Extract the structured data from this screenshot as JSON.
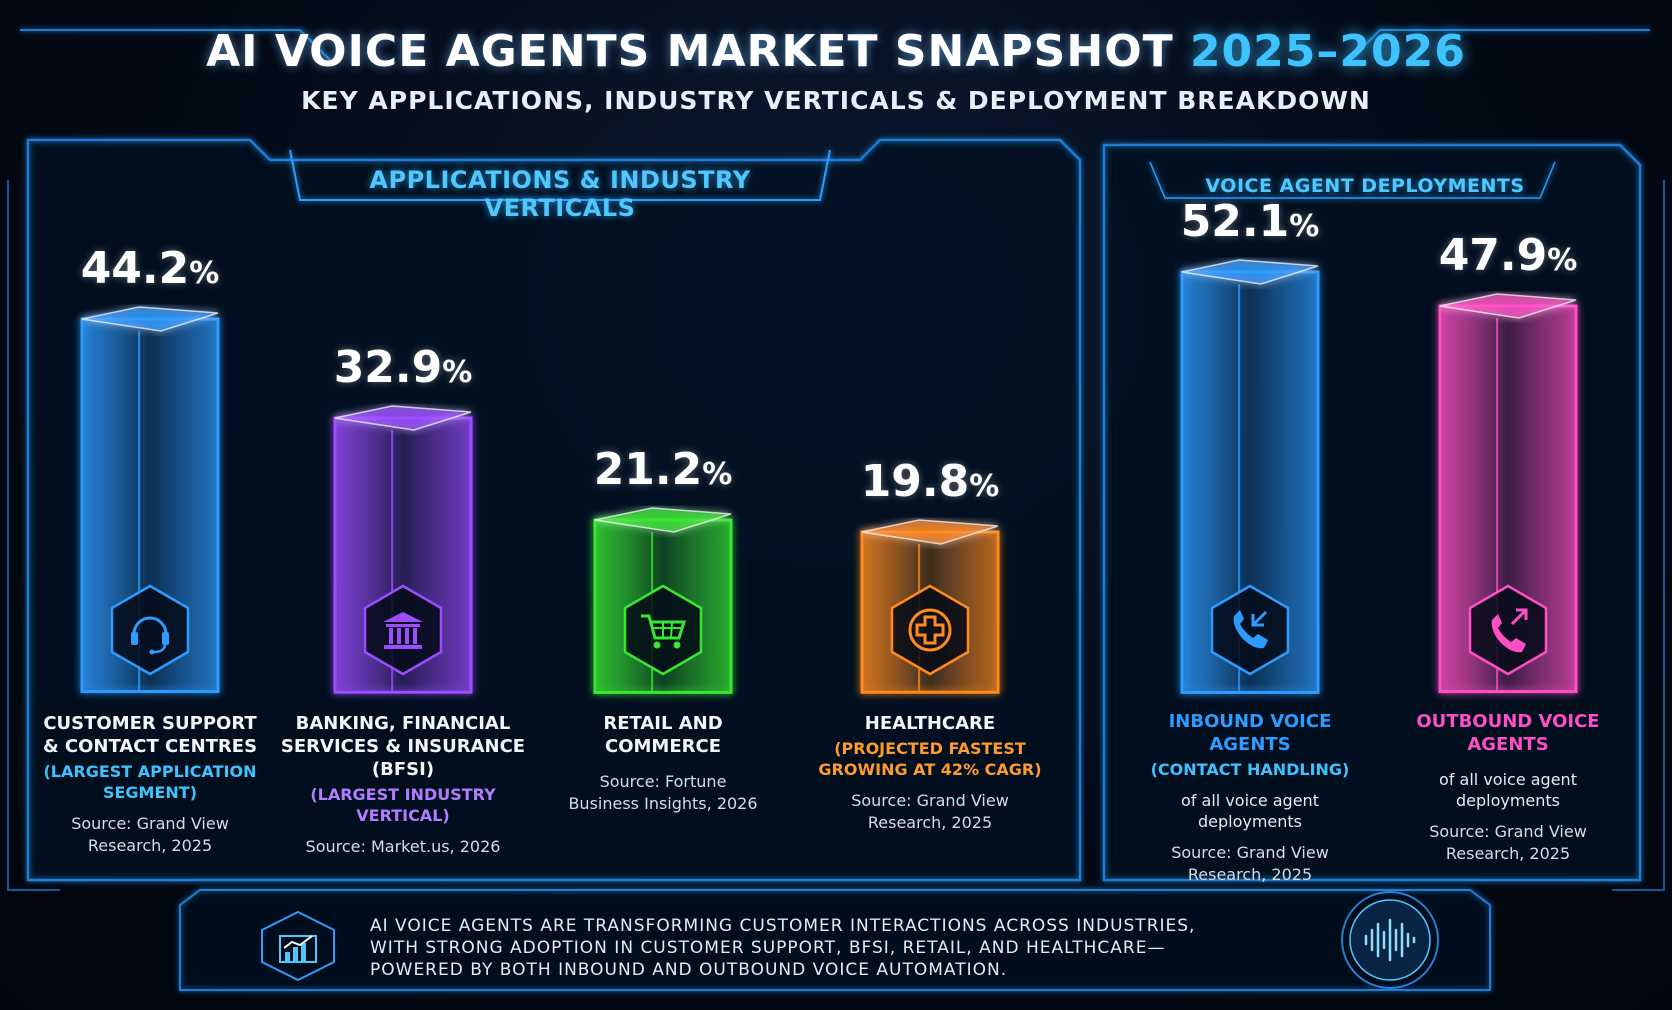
{
  "header": {
    "title_main": "AI VOICE AGENTS MARKET SNAPSHOT",
    "title_years": "2025–2026",
    "subtitle": "KEY APPLICATIONS, INDUSTRY VERTICALS & DEPLOYMENT BREAKDOWN"
  },
  "panels": {
    "left_title": "APPLICATIONS & INDUSTRY VERTICALS",
    "right_title": "VOICE AGENT DEPLOYMENTS"
  },
  "colors": {
    "blue": "#2e9bff",
    "purple": "#9b4dff",
    "green": "#39e632",
    "orange": "#ff8a1f",
    "pink": "#ff4fc4",
    "frame": "#1e7fd6"
  },
  "chart_data": [
    {
      "type": "bar",
      "categories": [
        "CUSTOMER SUPPORT & CONTACT CENTRES",
        "BANKING, FINANCIAL SERVICES & INSURANCE (BFSI)",
        "RETAIL AND COMMERCE",
        "HEALTHCARE"
      ],
      "values": [
        44.2,
        32.9,
        21.2,
        19.8
      ],
      "title": "APPLICATIONS & INDUSTRY VERTICALS",
      "unit": "%"
    },
    {
      "type": "bar",
      "categories": [
        "INBOUND VOICE AGENTS (CONTACT HANDLING)",
        "OUTBOUND VOICE AGENTS"
      ],
      "values": [
        52.1,
        47.9
      ],
      "title": "VOICE AGENT DEPLOYMENTS",
      "unit": "%"
    }
  ],
  "bars": [
    {
      "value_text": "44.2",
      "sign": "%",
      "icon": "headset-icon",
      "color": "#2e9bff",
      "label": [
        "CUSTOMER SUPPORT",
        "& CONTACT CENTRES"
      ],
      "note": [
        "(LARGEST APPLICATION",
        "SEGMENT)"
      ],
      "note_color": "#3ec3ff",
      "desc": [],
      "source": [
        "Source: Grand View",
        "Research, 2025"
      ]
    },
    {
      "value_text": "32.9",
      "sign": "%",
      "icon": "bank-icon",
      "color": "#9b4dff",
      "label": [
        "BANKING, FINANCIAL",
        "SERVICES & INSURANCE",
        "(BFSI)"
      ],
      "note": [
        "(LARGEST INDUSTRY",
        "VERTICAL)"
      ],
      "note_color": "#b57bff",
      "desc": [],
      "source": [
        "Source: Market.us, 2026"
      ]
    },
    {
      "value_text": "21.2",
      "sign": "%",
      "icon": "shopping-cart-icon",
      "color": "#39e632",
      "label": [
        "RETAIL AND",
        "COMMERCE"
      ],
      "note": [],
      "note_color": "#39e632",
      "desc": [],
      "source": [
        "Source: Fortune",
        "Business Insights, 2026"
      ]
    },
    {
      "value_text": "19.8",
      "sign": "%",
      "icon": "medical-cross-icon",
      "color": "#ff8a1f",
      "label": [
        "HEALTHCARE"
      ],
      "note": [
        "(PROJECTED FASTEST",
        "GROWING AT 42% CAGR)"
      ],
      "note_color": "#ff9a2e",
      "desc": [],
      "source": [
        "Source: Grand View",
        "Research, 2025"
      ]
    },
    {
      "value_text": "52.1",
      "sign": "%",
      "icon": "phone-inbound-icon",
      "color": "#2e9bff",
      "label": [
        "INBOUND VOICE",
        "AGENTS"
      ],
      "note": [
        "(CONTACT HANDLING)"
      ],
      "note_color": "#3ec3ff",
      "desc": [
        "of all voice agent",
        "deployments"
      ],
      "source": [
        "Source: Grand View",
        "Research, 2025"
      ]
    },
    {
      "value_text": "47.9",
      "sign": "%",
      "icon": "phone-outbound-icon",
      "color": "#ff4fc4",
      "label": [
        "OUTBOUND VOICE",
        "AGENTS"
      ],
      "note": [],
      "note_color": "#ff4fc4",
      "desc": [
        "of all voice agent",
        "deployments"
      ],
      "source": [
        "Source: Grand View",
        "Research, 2025"
      ]
    }
  ],
  "footer": {
    "icon": "growth-chart-icon",
    "lines": [
      "AI VOICE AGENTS ARE TRANSFORMING CUSTOMER INTERACTIONS ACROSS INDUSTRIES,",
      "WITH STRONG ADOPTION IN CUSTOMER SUPPORT, BFSI, RETAIL, AND HEALTHCARE—",
      "POWERED BY BOTH INBOUND AND OUTBOUND VOICE AUTOMATION."
    ],
    "badge_icon": "sound-wave-icon"
  }
}
